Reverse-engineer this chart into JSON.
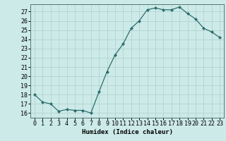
{
  "xlabel": "Humidex (Indice chaleur)",
  "ylabel": "",
  "x": [
    0,
    1,
    2,
    3,
    4,
    5,
    6,
    7,
    8,
    9,
    10,
    11,
    12,
    13,
    14,
    15,
    16,
    17,
    18,
    19,
    20,
    21,
    22,
    23
  ],
  "y": [
    18.0,
    17.2,
    17.0,
    16.2,
    16.4,
    16.3,
    16.3,
    16.0,
    18.3,
    20.5,
    22.3,
    23.5,
    25.2,
    26.0,
    27.2,
    27.4,
    27.2,
    27.2,
    27.5,
    26.8,
    26.2,
    25.2,
    24.8,
    24.2
  ],
  "line_color": "#2d6e6e",
  "marker": "D",
  "marker_size": 2.0,
  "bg_color": "#cceae8",
  "grid_color": "#b0cece",
  "ylim": [
    15.5,
    27.8
  ],
  "xlim": [
    -0.5,
    23.5
  ],
  "yticks": [
    16,
    17,
    18,
    19,
    20,
    21,
    22,
    23,
    24,
    25,
    26,
    27
  ],
  "xtick_labels": [
    "0",
    "1",
    "2",
    "3",
    "4",
    "5",
    "6",
    "7",
    "8",
    "9",
    "10",
    "11",
    "12",
    "13",
    "14",
    "15",
    "16",
    "17",
    "18",
    "19",
    "20",
    "21",
    "22",
    "23"
  ],
  "label_fontsize": 6.5,
  "tick_fontsize": 6.0,
  "linewidth": 0.9
}
